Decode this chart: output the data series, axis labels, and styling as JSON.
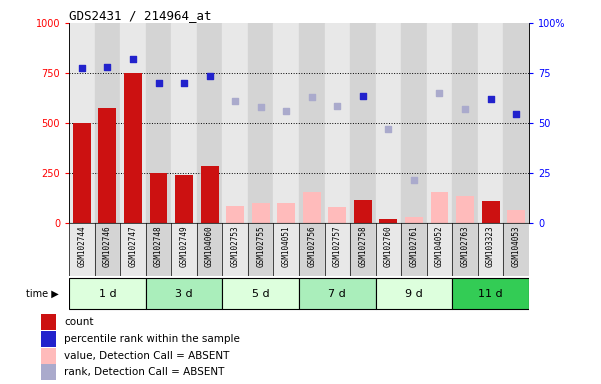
{
  "title": "GDS2431 / 214964_at",
  "samples": [
    "GSM102744",
    "GSM102746",
    "GSM102747",
    "GSM102748",
    "GSM102749",
    "GSM104060",
    "GSM102753",
    "GSM102755",
    "GSM104051",
    "GSM102756",
    "GSM102757",
    "GSM102758",
    "GSM102760",
    "GSM102761",
    "GSM104052",
    "GSM102763",
    "GSM103323",
    "GSM104053"
  ],
  "time_groups": [
    {
      "label": "1 d",
      "start": 0,
      "end": 3,
      "color": "#ddffdd"
    },
    {
      "label": "3 d",
      "start": 3,
      "end": 6,
      "color": "#aaeebb"
    },
    {
      "label": "5 d",
      "start": 6,
      "end": 9,
      "color": "#ddffdd"
    },
    {
      "label": "7 d",
      "start": 9,
      "end": 12,
      "color": "#aaeebb"
    },
    {
      "label": "9 d",
      "start": 12,
      "end": 15,
      "color": "#ddffdd"
    },
    {
      "label": "11 d",
      "start": 15,
      "end": 18,
      "color": "#33cc55"
    }
  ],
  "count_present": [
    500,
    575,
    750,
    250,
    240,
    285,
    null,
    null,
    null,
    null,
    null,
    115,
    20,
    null,
    null,
    null,
    110,
    null
  ],
  "count_absent": [
    null,
    null,
    null,
    null,
    null,
    null,
    85,
    100,
    100,
    155,
    80,
    null,
    null,
    30,
    155,
    135,
    null,
    65
  ],
  "rank_present": [
    77.5,
    78.0,
    82.0,
    70.0,
    70.0,
    73.5,
    null,
    null,
    null,
    null,
    null,
    63.5,
    null,
    null,
    null,
    null,
    62.0,
    54.5
  ],
  "rank_absent": [
    null,
    null,
    null,
    null,
    null,
    null,
    61.0,
    58.0,
    56.0,
    63.0,
    58.5,
    null,
    47.0,
    21.5,
    65.0,
    57.0,
    null,
    null
  ],
  "ylim_left": [
    0,
    1000
  ],
  "ylim_right": [
    0,
    100
  ],
  "yticks_left": [
    0,
    250,
    500,
    750,
    1000
  ],
  "yticks_right": [
    0,
    25,
    50,
    75,
    100
  ],
  "ytick_right_labels": [
    "0",
    "25",
    "50",
    "75",
    "100%"
  ],
  "color_count_present": "#cc1111",
  "color_count_absent": "#ffbbbb",
  "color_rank_present": "#2222cc",
  "color_rank_absent": "#aaaacc",
  "col_bg_even": "#e8e8e8",
  "col_bg_odd": "#d4d4d4",
  "grid_color": "#000000",
  "legend_items": [
    {
      "color": "#cc1111",
      "label": "count"
    },
    {
      "color": "#2222cc",
      "label": "percentile rank within the sample"
    },
    {
      "color": "#ffbbbb",
      "label": "value, Detection Call = ABSENT"
    },
    {
      "color": "#aaaacc",
      "label": "rank, Detection Call = ABSENT"
    }
  ]
}
